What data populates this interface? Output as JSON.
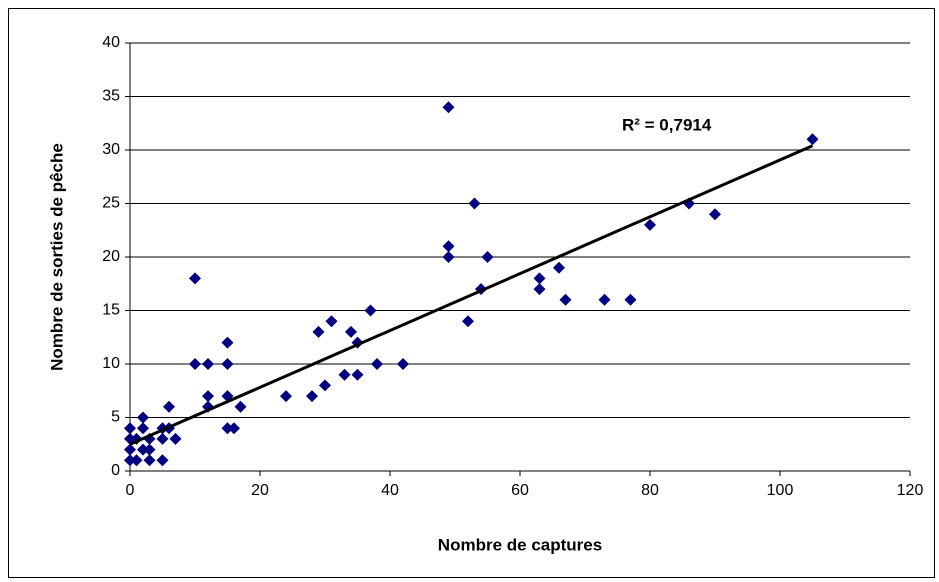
{
  "chart_data": {
    "type": "scatter",
    "x": [
      0,
      0,
      0,
      0,
      1,
      1,
      2,
      2,
      2,
      3,
      3,
      3,
      5,
      5,
      5,
      6,
      6,
      7,
      10,
      10,
      12,
      12,
      12,
      15,
      15,
      15,
      15,
      16,
      17,
      24,
      28,
      29,
      30,
      31,
      33,
      34,
      35,
      35,
      37,
      38,
      42,
      49,
      49,
      49,
      52,
      53,
      54,
      55,
      63,
      63,
      66,
      67,
      73,
      77,
      80,
      86,
      90,
      105
    ],
    "values": [
      1,
      2,
      3,
      4,
      1,
      3,
      2,
      4,
      5,
      1,
      2,
      3,
      1,
      3,
      4,
      4,
      6,
      3,
      10,
      18,
      6,
      7,
      10,
      4,
      7,
      10,
      12,
      4,
      6,
      7,
      7,
      13,
      8,
      14,
      9,
      13,
      9,
      12,
      15,
      10,
      10,
      34,
      21,
      20,
      14,
      25,
      17,
      20,
      18,
      17,
      19,
      16,
      16,
      16,
      23,
      25,
      24,
      31
    ],
    "color": "#000080",
    "trendline": {
      "x": [
        0,
        105
      ],
      "values": [
        2.5,
        30.4
      ],
      "color": "#000000"
    },
    "annotation": "R² = 0,7914",
    "xlabel": "Nombre de captures",
    "ylabel": "Nombre de sorties de pêche",
    "xlim": [
      0,
      120
    ],
    "xticks": [
      0,
      20,
      40,
      60,
      80,
      100,
      120
    ],
    "ylim": [
      0,
      40
    ],
    "yticks": [
      0,
      5,
      10,
      15,
      20,
      25,
      30,
      35,
      40
    ],
    "grid": true
  }
}
